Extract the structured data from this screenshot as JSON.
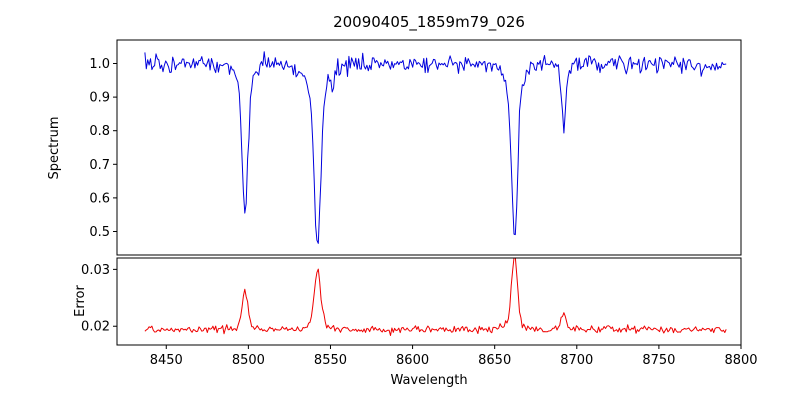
{
  "chart_data": {
    "type": "line",
    "title": "20090405_1859m79_026",
    "xlabel": "Wavelength",
    "background": "#ffffff",
    "xlim": [
      8420,
      8800
    ],
    "x_ticks": [
      8450,
      8500,
      8550,
      8600,
      8650,
      8700,
      8750,
      8800
    ],
    "x_tick_labels": [
      "8450",
      "8500",
      "8550",
      "8600",
      "8650",
      "8700",
      "8750",
      "8800"
    ],
    "x_data_range": [
      8437,
      8791
    ],
    "n_points": 420,
    "noise_seed": 7,
    "legend": "none",
    "grid": false,
    "panels": [
      {
        "name": "spectrum",
        "ylabel": "Spectrum",
        "color": "#0000dd",
        "ylim": [
          0.43,
          1.07
        ],
        "y_ticks": [
          0.5,
          0.6,
          0.7,
          0.8,
          0.9,
          1.0
        ],
        "y_tick_labels": [
          "0.5",
          "0.6",
          "0.7",
          "0.8",
          "0.9",
          "1.0"
        ],
        "baseline": 1.0,
        "noise_sigma": 0.012,
        "spike_prob": 0.05,
        "spike_max": 0.05,
        "features": [
          {
            "center": 8498.0,
            "depth": 0.39,
            "sigma": 1.6,
            "wing_depth": 0.06,
            "wing_sigma": 5
          },
          {
            "center": 8542.1,
            "depth": 0.46,
            "sigma": 2.0,
            "wing_depth": 0.08,
            "wing_sigma": 8
          },
          {
            "center": 8662.1,
            "depth": 0.45,
            "sigma": 1.8,
            "wing_depth": 0.07,
            "wing_sigma": 6
          },
          {
            "center": 8692.0,
            "depth": 0.17,
            "sigma": 1.2,
            "wing_depth": 0.02,
            "wing_sigma": 3
          }
        ]
      },
      {
        "name": "error",
        "ylabel": "Error",
        "color": "#ee0000",
        "ylim": [
          0.0167,
          0.032
        ],
        "y_ticks": [
          0.02,
          0.03
        ],
        "y_tick_labels": [
          "0.02",
          "0.03"
        ],
        "baseline": 0.0194,
        "noise_sigma": 0.00032,
        "features": [
          {
            "center": 8498.0,
            "amp": 0.0063,
            "sigma": 1.8,
            "wing_amp": 0.0005,
            "wing_sigma": 5
          },
          {
            "center": 8542.1,
            "amp": 0.0095,
            "sigma": 2.0,
            "wing_amp": 0.0008,
            "wing_sigma": 8
          },
          {
            "center": 8662.1,
            "amp": 0.0122,
            "sigma": 1.8,
            "wing_amp": 0.0008,
            "wing_sigma": 6
          },
          {
            "center": 8692.0,
            "amp": 0.0027,
            "sigma": 1.4,
            "wing_amp": 0.0002,
            "wing_sigma": 3
          }
        ]
      }
    ]
  }
}
